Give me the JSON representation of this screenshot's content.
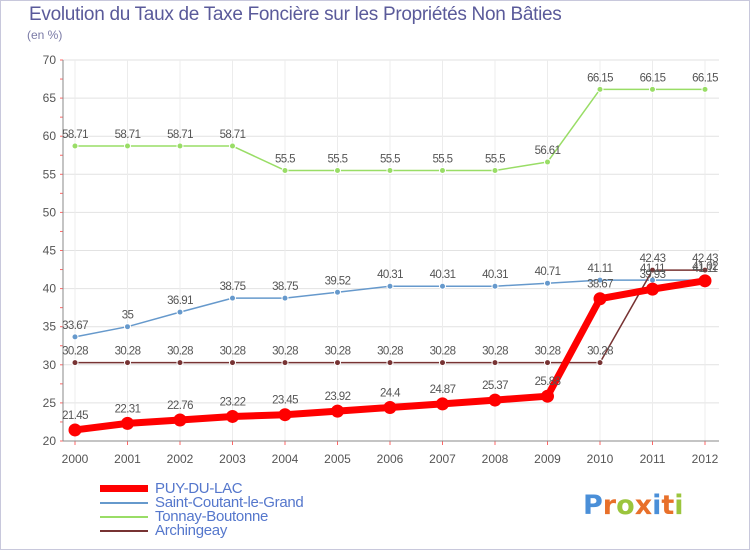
{
  "title": "Evolution du Taux de Taxe Foncière sur les Propriétés Non Bâties",
  "unit": "(en %)",
  "brand": {
    "letters": [
      "P",
      "r",
      "o",
      "x",
      "i",
      "t",
      "i"
    ],
    "colors": [
      "#4a8fd8",
      "#e8702a",
      "#9bc53d",
      "#e8702a",
      "#4a8fd8",
      "#e8702a",
      "#9bc53d"
    ]
  },
  "chart_data": {
    "type": "line",
    "title": "Evolution du Taux de Taxe Foncière sur les Propriétés Non Bâties",
    "ylabel": "(en %)",
    "xlabel": "",
    "ylim": [
      20,
      70
    ],
    "yticks": [
      "20",
      "25",
      "30",
      "35",
      "40",
      "45",
      "50",
      "55",
      "60",
      "65",
      "70"
    ],
    "categories": [
      "2000",
      "2001",
      "2002",
      "2003",
      "2004",
      "2005",
      "2006",
      "2007",
      "2008",
      "2009",
      "2010",
      "2011",
      "2012"
    ],
    "series": [
      {
        "name": "PUY-DU-LAC",
        "color": "#ff0000",
        "values": [
          21.45,
          22.31,
          22.76,
          23.22,
          23.45,
          23.92,
          24.4,
          24.87,
          25.37,
          25.88,
          38.67,
          39.93,
          41.02
        ],
        "labels": [
          "21.45",
          "22.31",
          "22.76",
          "23.22",
          "23.45",
          "23.92",
          "24.4",
          "24.87",
          "25.37",
          "25.88",
          "38.67",
          "39.93",
          "41.02"
        ]
      },
      {
        "name": "Saint-Coutant-le-Grand",
        "color": "#6699cc",
        "values": [
          33.67,
          35,
          36.91,
          38.75,
          38.75,
          39.52,
          40.31,
          40.31,
          40.31,
          40.71,
          41.11,
          41.11,
          41.11
        ],
        "labels": [
          "33.67",
          "35",
          "36.91",
          "38.75",
          "38.75",
          "39.52",
          "40.31",
          "40.31",
          "40.31",
          "40.71",
          "41.11",
          "41.11",
          "41.11"
        ]
      },
      {
        "name": "Tonnay-Boutonne",
        "color": "#99dd66",
        "values": [
          58.71,
          58.71,
          58.71,
          58.71,
          55.5,
          55.5,
          55.5,
          55.5,
          55.5,
          56.61,
          66.15,
          66.15,
          66.15
        ],
        "labels": [
          "58.71",
          "58.71",
          "58.71",
          "58.71",
          "55.5",
          "55.5",
          "55.5",
          "55.5",
          "55.5",
          "56.61",
          "66.15",
          "66.15",
          "66.15"
        ]
      },
      {
        "name": "Archingeay",
        "color": "#773333",
        "values": [
          30.28,
          30.28,
          30.28,
          30.28,
          30.28,
          30.28,
          30.28,
          30.28,
          30.28,
          30.28,
          30.28,
          42.43,
          42.43
        ],
        "labels": [
          "30.28",
          "30.28",
          "30.28",
          "30.28",
          "30.28",
          "30.28",
          "30.28",
          "30.28",
          "30.28",
          "30.28",
          "30.28",
          "42.43",
          "42.43"
        ]
      }
    ],
    "legend": "bottom-left",
    "grid": true
  }
}
